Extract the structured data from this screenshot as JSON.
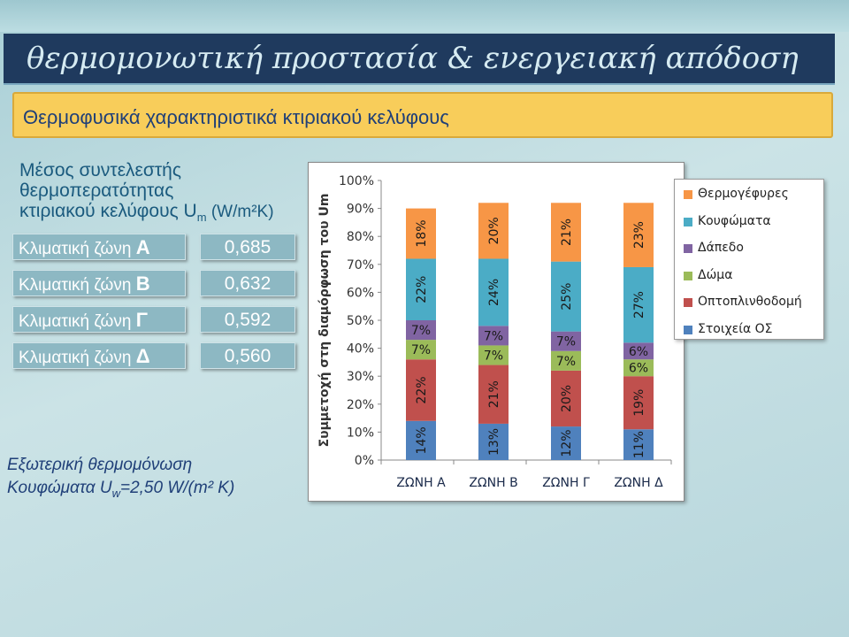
{
  "header": {
    "title": "θερμομονωτική προστασία & ενεργειακή απόδοση"
  },
  "subheader": {
    "title": "Θερμοφυσικά χαρακτηριστικά κτιριακού κελύφους"
  },
  "left_panel": {
    "title_line1": "Μέσος συντελεστής",
    "title_line2": "θερμοπερατότητας",
    "title_line3_prefix": "κτιριακού κελύφους U",
    "title_line3_sub": "m",
    "title_line3_suffix": " (W/m²K)",
    "zones": [
      {
        "label": "Κλιματική ζώνη ",
        "letter": "Α",
        "value": "0,685"
      },
      {
        "label": "Κλιματική ζώνη ",
        "letter": "Β",
        "value": "0,632"
      },
      {
        "label": "Κλιματική ζώνη ",
        "letter": "Γ",
        "value": "0,592"
      },
      {
        "label": "Κλιματική ζώνη ",
        "letter": "Δ",
        "value": "0,560"
      }
    ],
    "note_line1": "Εξωτερική θερμομόνωση",
    "note_line2_prefix": "Κουφώματα U",
    "note_line2_sub": "w",
    "note_line2_suffix": "=2,50 W/(m² K)"
  },
  "chart_data": {
    "type": "bar",
    "stacked": true,
    "ylabel": "Συμμετοχή στη διαμόρφωση του Um",
    "ylim": [
      0,
      100
    ],
    "yticks": [
      "0%",
      "10%",
      "20%",
      "30%",
      "40%",
      "50%",
      "60%",
      "70%",
      "80%",
      "90%",
      "100%"
    ],
    "categories": [
      "ΖΩΝΗ Α",
      "ΖΩΝΗ Β",
      "ΖΩΝΗ Γ",
      "ΖΩΝΗ Δ"
    ],
    "series": [
      {
        "name": "Στοιχεία ΟΣ",
        "color": "#4f81bd",
        "values": [
          14,
          13,
          12,
          11
        ]
      },
      {
        "name": "Οπτοπλινθοδομή",
        "color": "#c0504d",
        "values": [
          22,
          21,
          20,
          19
        ]
      },
      {
        "name": "Δώμα",
        "color": "#9bbb59",
        "values": [
          7,
          7,
          7,
          6
        ]
      },
      {
        "name": "Δάπεδο",
        "color": "#8064a2",
        "values": [
          7,
          7,
          7,
          6
        ]
      },
      {
        "name": "Κουφώματα",
        "color": "#4bacc6",
        "values": [
          22,
          24,
          25,
          27
        ]
      },
      {
        "name": "Θερμογέφυρες",
        "color": "#f79646",
        "values": [
          18,
          20,
          21,
          23
        ]
      }
    ],
    "data_labels": [
      [
        "14%",
        "13%",
        "12%",
        "11%"
      ],
      [
        "22%",
        "21%",
        "20%",
        "19%"
      ],
      [
        "7%",
        "7%",
        "7%",
        "6%"
      ],
      [
        "7%",
        "7%",
        "7%",
        "6%"
      ],
      [
        "22%",
        "24%",
        "25%",
        "27%"
      ],
      [
        "18%",
        "20%",
        "21%",
        "23%"
      ]
    ],
    "legend_order": [
      "Θερμογέφυρες",
      "Κουφώματα",
      "Δάπεδο",
      "Δώμα",
      "Οπτοπλινθοδομή",
      "Στοιχεία ΟΣ"
    ],
    "legend_position": "right",
    "grid": false
  }
}
